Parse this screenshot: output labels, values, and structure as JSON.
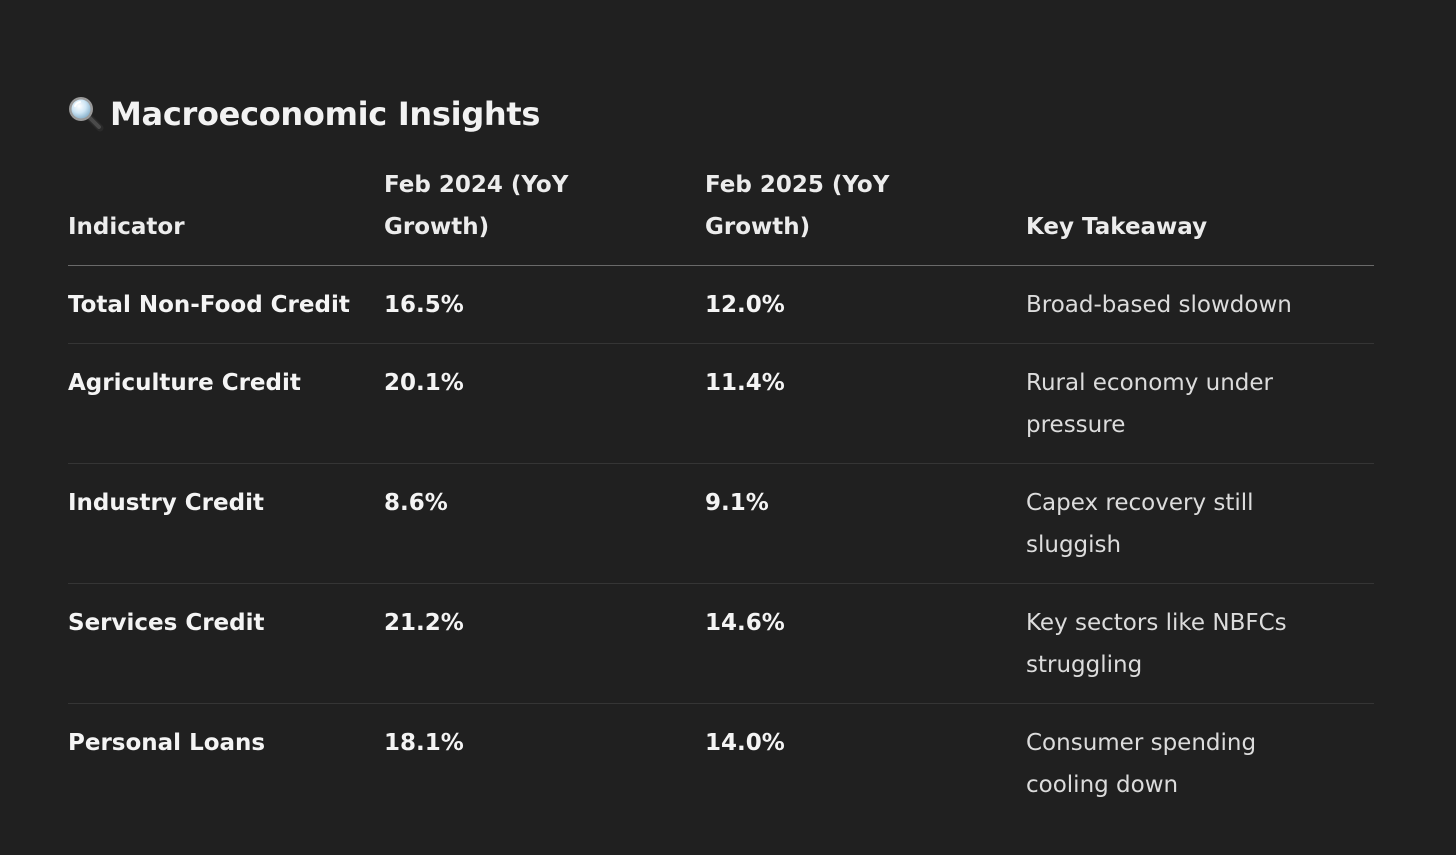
{
  "title": "Macroeconomic Insights",
  "title_icon": "magnifying-glass-icon",
  "table": {
    "headers": [
      "Indicator",
      "Feb 2024 (YoY Growth)",
      "Feb 2025 (YoY Growth)",
      "Key Takeaway"
    ],
    "rows": [
      {
        "indicator": "Total Non-Food Credit",
        "feb_2024": "16.5%",
        "feb_2025": "12.0%",
        "takeaway": "Broad-based slowdown"
      },
      {
        "indicator": "Agriculture Credit",
        "feb_2024": "20.1%",
        "feb_2025": "11.4%",
        "takeaway": "Rural economy under pressure"
      },
      {
        "indicator": "Industry Credit",
        "feb_2024": "8.6%",
        "feb_2025": "9.1%",
        "takeaway": "Capex recovery still sluggish"
      },
      {
        "indicator": "Services Credit",
        "feb_2024": "21.2%",
        "feb_2025": "14.6%",
        "takeaway": "Key sectors like NBFCs struggling"
      },
      {
        "indicator": "Personal Loans",
        "feb_2024": "18.1%",
        "feb_2025": "14.0%",
        "takeaway": "Consumer spending cooling down"
      }
    ]
  },
  "colors": {
    "background": "#202020",
    "text": "#ececec",
    "header_rule": "#6a6a6a",
    "row_rule": "#353535"
  }
}
